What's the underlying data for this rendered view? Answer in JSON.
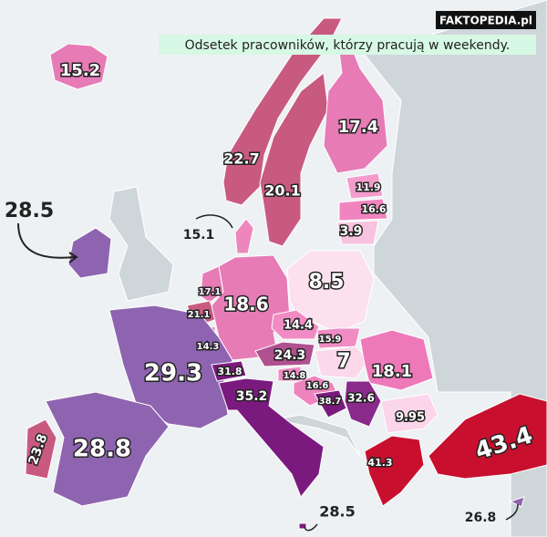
{
  "header": {
    "watermark": "FAKTOPEDIA.pl",
    "caption": "Odsetek pracowników, którzy pracują w weekendy."
  },
  "regions": [
    {
      "value": 15.2,
      "color": "#e67bb6"
    },
    {
      "value": 22.7,
      "color": "#c85a80"
    },
    {
      "value": 20.1,
      "color": "#c85a80"
    },
    {
      "value": 17.4,
      "color": "#e67bb6"
    },
    {
      "value": 11.9,
      "color": "#f49ccc"
    },
    {
      "value": 16.6,
      "color": "#f084bf"
    },
    {
      "value": 3.9,
      "color": "#f8c3df"
    },
    {
      "value": 15.1,
      "color": "#ec86bd"
    },
    {
      "value": 28.5,
      "color": "#8e64b0"
    },
    {
      "value": 17.1,
      "color": "#e67bb6"
    },
    {
      "value": 21.1,
      "color": "#c85a80"
    },
    {
      "value": 14.3,
      "color": "#ec86bd"
    },
    {
      "value": 18.6,
      "color": "#e67bb6"
    },
    {
      "value": 8.5,
      "color": "#fce0ee"
    },
    {
      "value": 14.4,
      "color": "#f08bc4"
    },
    {
      "value": 15.9,
      "color": "#f08bc4"
    },
    {
      "value": 24.3,
      "color": "#b0508f"
    },
    {
      "value": 7,
      "color": "#fbd8ea"
    },
    {
      "value": 18.1,
      "color": "#ee79b9"
    },
    {
      "value": 14.8,
      "color": "#f08bc4"
    },
    {
      "value": 16.6,
      "color": "#f084bf"
    },
    {
      "value": 38.7,
      "color": "#7b1a7e"
    },
    {
      "value": 32.6,
      "color": "#8a2a8a"
    },
    {
      "value": 9.95,
      "color": "#fbd5ea"
    },
    {
      "value": 29.3,
      "color": "#8e64b0"
    },
    {
      "value": 31.8,
      "color": "#7b1a7e"
    },
    {
      "value": 35.2,
      "color": "#7b1a7e"
    },
    {
      "value": 28.8,
      "color": "#8e64b0"
    },
    {
      "value": 23.8,
      "color": "#c85a80"
    },
    {
      "value": 43.4,
      "color": "#c8102e"
    },
    {
      "value": 41.3,
      "color": "#c8102e"
    },
    {
      "value": 28.5,
      "color": "#7b1a7e"
    },
    {
      "value": 26.8,
      "color": "#8e64b0"
    }
  ]
}
